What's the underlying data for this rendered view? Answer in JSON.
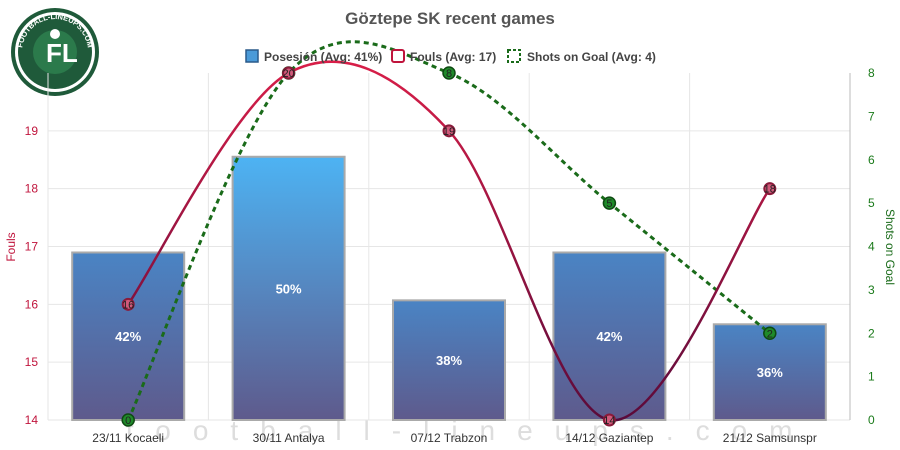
{
  "chart_data": {
    "type": "bar",
    "title": "Göztepe SK recent games",
    "categories": [
      "23/11 Kocaeli",
      "30/11 Antalya",
      "07/12 Trabzon",
      "14/12 Gaziantep",
      "21/12 Samsunspr"
    ],
    "series": [
      {
        "name": "Posesión (Avg: 41%)",
        "type": "bar",
        "values": [
          42,
          50,
          38,
          42,
          36
        ],
        "labels": [
          "42%",
          "50%",
          "38%",
          "42%",
          "36%"
        ],
        "color": "#4a7fb8"
      },
      {
        "name": "Fouls (Avg: 17)",
        "type": "spline",
        "values": [
          16,
          20,
          19,
          14,
          18
        ],
        "labels": [
          "16",
          "20",
          "19",
          "14",
          "18"
        ],
        "color": "#d0204a"
      },
      {
        "name": "Shots on Goal (Avg: 4)",
        "type": "dashed-spline",
        "values": [
          0,
          8,
          8,
          5,
          2
        ],
        "labels": [
          "0",
          "8",
          "8",
          "5",
          "2"
        ],
        "color": "#1a6b1a"
      }
    ],
    "left_axis": {
      "label": "Fouls",
      "ticks": [
        "14",
        "15",
        "16",
        "17",
        "18",
        "19"
      ],
      "min": 14,
      "max": 20
    },
    "right_axis": {
      "label": "Shots on Goal",
      "ticks": [
        "0",
        "1",
        "2",
        "3",
        "4",
        "5",
        "6",
        "7",
        "8"
      ],
      "min": 0,
      "max": 8
    },
    "possession_range": [
      28,
      57
    ],
    "legend_position": "top-center",
    "grid": true
  },
  "logo_text": "FOOTBALL-LINEUPS.COM",
  "watermark": "football-lineups.com"
}
